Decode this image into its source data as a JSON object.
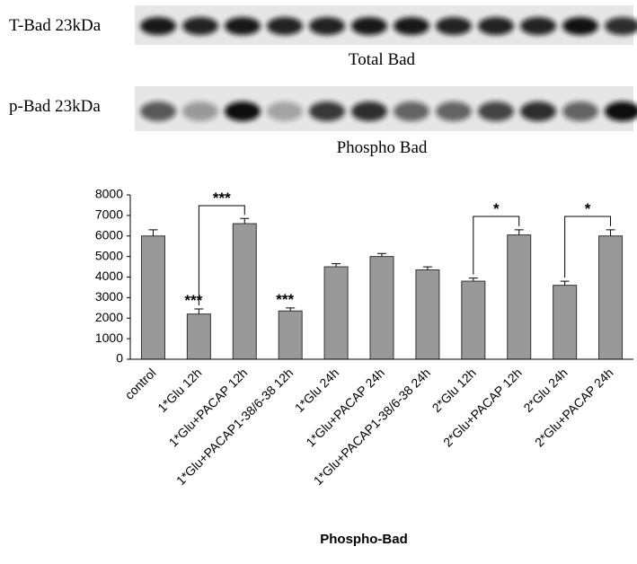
{
  "blot": {
    "rows": [
      {
        "label": "T-Bad 23kDa",
        "caption": "Total Bad"
      },
      {
        "label": "p-Bad 23kDa",
        "caption": "Phospho Bad"
      }
    ]
  },
  "chart_data": {
    "type": "bar",
    "x_label": "Phospho-Bad",
    "categories": [
      "control",
      "1*Glu 12h",
      "1*Glu+PACAP 12h",
      "1*Glu+PACAP1-38/6-38 12h",
      "1*Glu 24h",
      "1*Glu+PACAP 24h",
      "1*Glu+PACAP1-38/6-38 24h",
      "2*Glu 12h",
      "2*Glu+PACAP 12h",
      "2*Glu 24h",
      "2*Glu+PACAP 24h"
    ],
    "values": [
      6000,
      2200,
      6600,
      2350,
      4500,
      5000,
      4350,
      3800,
      6050,
      3600,
      6000
    ],
    "errors": [
      300,
      250,
      250,
      150,
      150,
      150,
      150,
      150,
      250,
      200,
      300
    ],
    "color": "#999999",
    "ylim": [
      0,
      8000
    ],
    "yticks": [
      0,
      1000,
      2000,
      3000,
      4000,
      5000,
      6000,
      7000,
      8000
    ],
    "annotations": [
      "***",
      "***",
      "***",
      "*",
      "*"
    ]
  }
}
